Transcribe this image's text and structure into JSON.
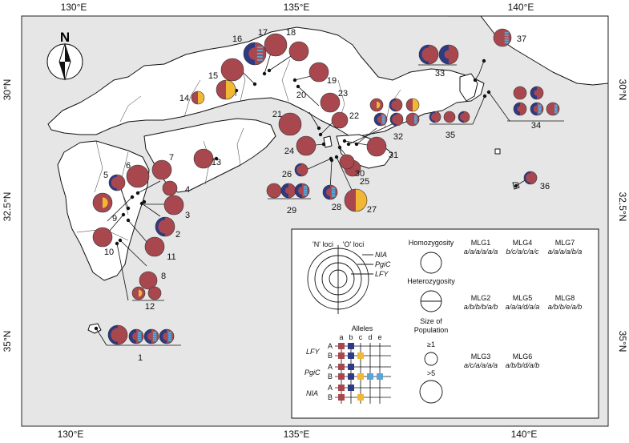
{
  "axes": {
    "top_lon": [
      "130°E",
      "135°E",
      "140°E"
    ],
    "bottom_lon": [
      "130°E",
      "135°E",
      "140°E"
    ],
    "left_lat": [
      "30°N",
      "32.5°N",
      "35°N"
    ],
    "right_lat": [
      "30°N",
      "32.5°N",
      "35°N"
    ]
  },
  "compass": {
    "letter": "N"
  },
  "populations": [
    {
      "n": "1"
    },
    {
      "n": "2"
    },
    {
      "n": "3"
    },
    {
      "n": "4"
    },
    {
      "n": "5"
    },
    {
      "n": "6"
    },
    {
      "n": "7"
    },
    {
      "n": "8"
    },
    {
      "n": "9"
    },
    {
      "n": "10"
    },
    {
      "n": "11"
    },
    {
      "n": "12"
    },
    {
      "n": "13"
    },
    {
      "n": "14"
    },
    {
      "n": "15"
    },
    {
      "n": "16"
    },
    {
      "n": "17"
    },
    {
      "n": "18"
    },
    {
      "n": "19"
    },
    {
      "n": "20"
    },
    {
      "n": "21"
    },
    {
      "n": "22"
    },
    {
      "n": "23"
    },
    {
      "n": "24"
    },
    {
      "n": "25"
    },
    {
      "n": "26"
    },
    {
      "n": "27"
    },
    {
      "n": "28"
    },
    {
      "n": "29"
    },
    {
      "n": "30"
    },
    {
      "n": "31"
    },
    {
      "n": "32"
    },
    {
      "n": "33"
    },
    {
      "n": "34"
    },
    {
      "n": "35"
    },
    {
      "n": "36"
    },
    {
      "n": "37"
    }
  ],
  "legend": {
    "n_loci": "'N' loci",
    "o_loci": "'O' loci",
    "ring_nia": "NIA",
    "ring_pgic": "PgiC",
    "ring_lfy": "LFY",
    "homozygosity": "Homozygosity",
    "heterozygosity": "Heterozygosity",
    "size_title_1": "Size of",
    "size_title_2": "Population",
    "size_small": "≥1",
    "size_large": ">5",
    "alleles_title": "Alleles",
    "allele_letters": [
      "a",
      "b",
      "c",
      "d",
      "e"
    ],
    "locus_lfy": "LFY",
    "locus_pgic": "PgiC",
    "locus_nia": "NIA",
    "row_a": "A",
    "row_b": "B",
    "mlg": [
      {
        "name": "MLG1",
        "code": "a/a/a/a/a/a"
      },
      {
        "name": "MLG4",
        "code": "b/c/a/c/a/c"
      },
      {
        "name": "MLG7",
        "code": "a/a/a/a/b/a"
      },
      {
        "name": "MLG2",
        "code": "a/b/b/b/a/b"
      },
      {
        "name": "MLG5",
        "code": "a/a/a/d/a/a"
      },
      {
        "name": "MLG8",
        "code": "a/b/b/e/a/b"
      },
      {
        "name": "MLG3",
        "code": "a/c/a/a/a/a"
      },
      {
        "name": "MLG6",
        "code": "a/b/b/d/a/b"
      }
    ]
  },
  "colors": {
    "sea": "#e6e6e6",
    "land": "#ffffff",
    "mlg_red": "#a8484e",
    "mlg_yellow": "#f2b733",
    "mlg_navy": "#2e3a84",
    "mlg_light_blue": "#5aa5d6"
  }
}
